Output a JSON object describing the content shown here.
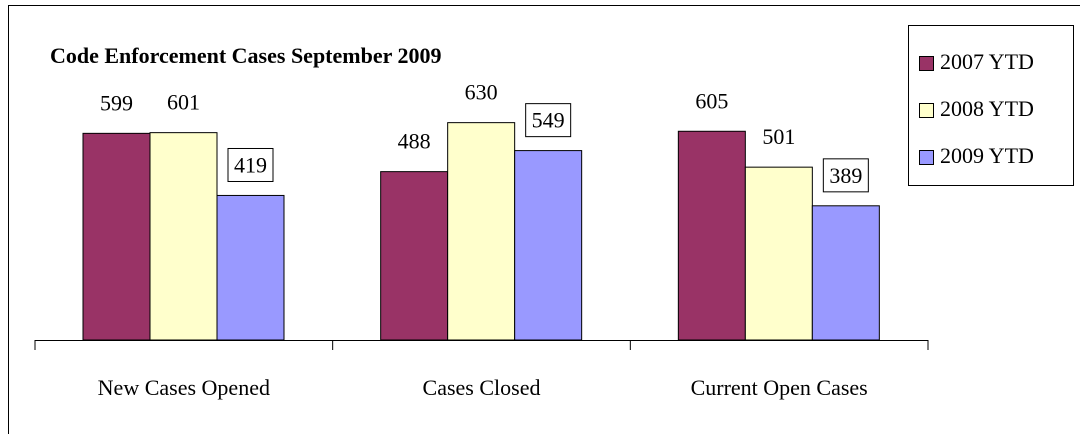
{
  "chart_data": {
    "type": "bar",
    "title": "Code Enforcement Cases September 2009",
    "categories": [
      "New Cases Opened",
      "Cases Closed",
      "Current Open Cases"
    ],
    "series": [
      {
        "name": "2007 YTD",
        "color": "#993366",
        "values": [
          599,
          488,
          605
        ]
      },
      {
        "name": "2008 YTD",
        "color": "#FFFFCC",
        "values": [
          601,
          630,
          501
        ]
      },
      {
        "name": "2009 YTD",
        "color": "#9999FF",
        "values": [
          419,
          549,
          389
        ]
      }
    ],
    "ylim": [
      0,
      700
    ],
    "legend": "right"
  }
}
